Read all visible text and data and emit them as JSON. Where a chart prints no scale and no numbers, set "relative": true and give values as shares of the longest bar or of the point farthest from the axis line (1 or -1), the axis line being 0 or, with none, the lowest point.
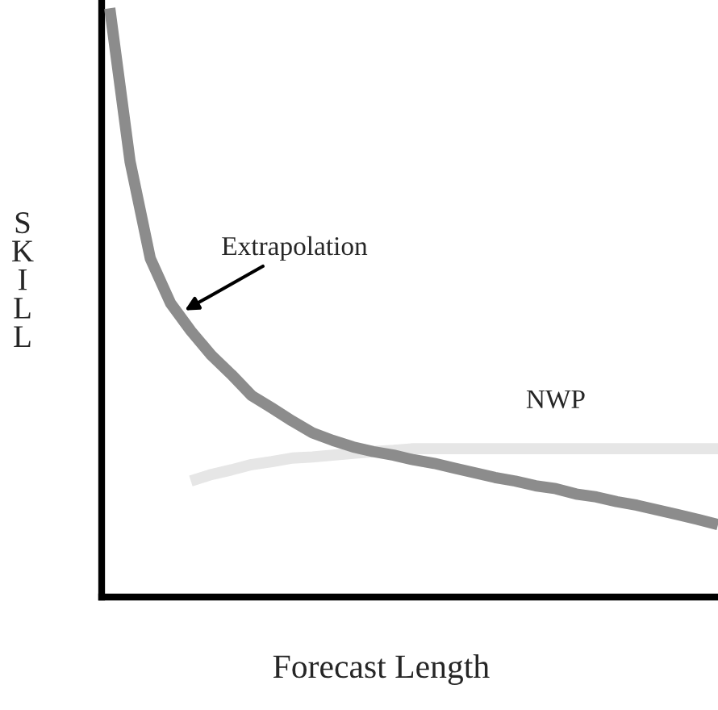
{
  "chart_data": {
    "type": "line",
    "relative": true,
    "xlabel": "Forecast Length",
    "ylabel": "SKILL",
    "categories": [
      null,
      null,
      null,
      null,
      null,
      null,
      null,
      null,
      null,
      null,
      null,
      null,
      null,
      null,
      null,
      null,
      null,
      null,
      null,
      null,
      null,
      null,
      null,
      null,
      null,
      null,
      null,
      null,
      null,
      null,
      null
    ],
    "series": [
      {
        "name": "Extrapolation",
        "color": "#8c8c8c",
        "values": [
          1.0,
          0.74,
          0.575,
          0.499,
          0.452,
          0.411,
          0.378,
          0.342,
          0.321,
          0.299,
          0.279,
          0.266,
          0.255,
          0.247,
          0.241,
          0.233,
          0.227,
          0.219,
          0.211,
          0.203,
          0.197,
          0.189,
          0.184,
          0.175,
          0.17,
          0.162,
          0.156,
          0.148,
          0.14,
          0.132,
          0.123
        ]
      },
      {
        "name": "NWP",
        "color": "#e6e6e6",
        "values": [
          null,
          null,
          null,
          null,
          0.197,
          0.208,
          0.216,
          0.225,
          0.23,
          0.236,
          0.238,
          0.241,
          0.244,
          0.247,
          0.249,
          0.252,
          0.252,
          0.252,
          0.252,
          0.252,
          0.252,
          0.252,
          0.252,
          0.252,
          0.252,
          0.252,
          0.252,
          0.252,
          0.252,
          0.252,
          0.252
        ]
      }
    ],
    "legend": false,
    "grid": false,
    "marker": "none",
    "line_style": "solid"
  }
}
